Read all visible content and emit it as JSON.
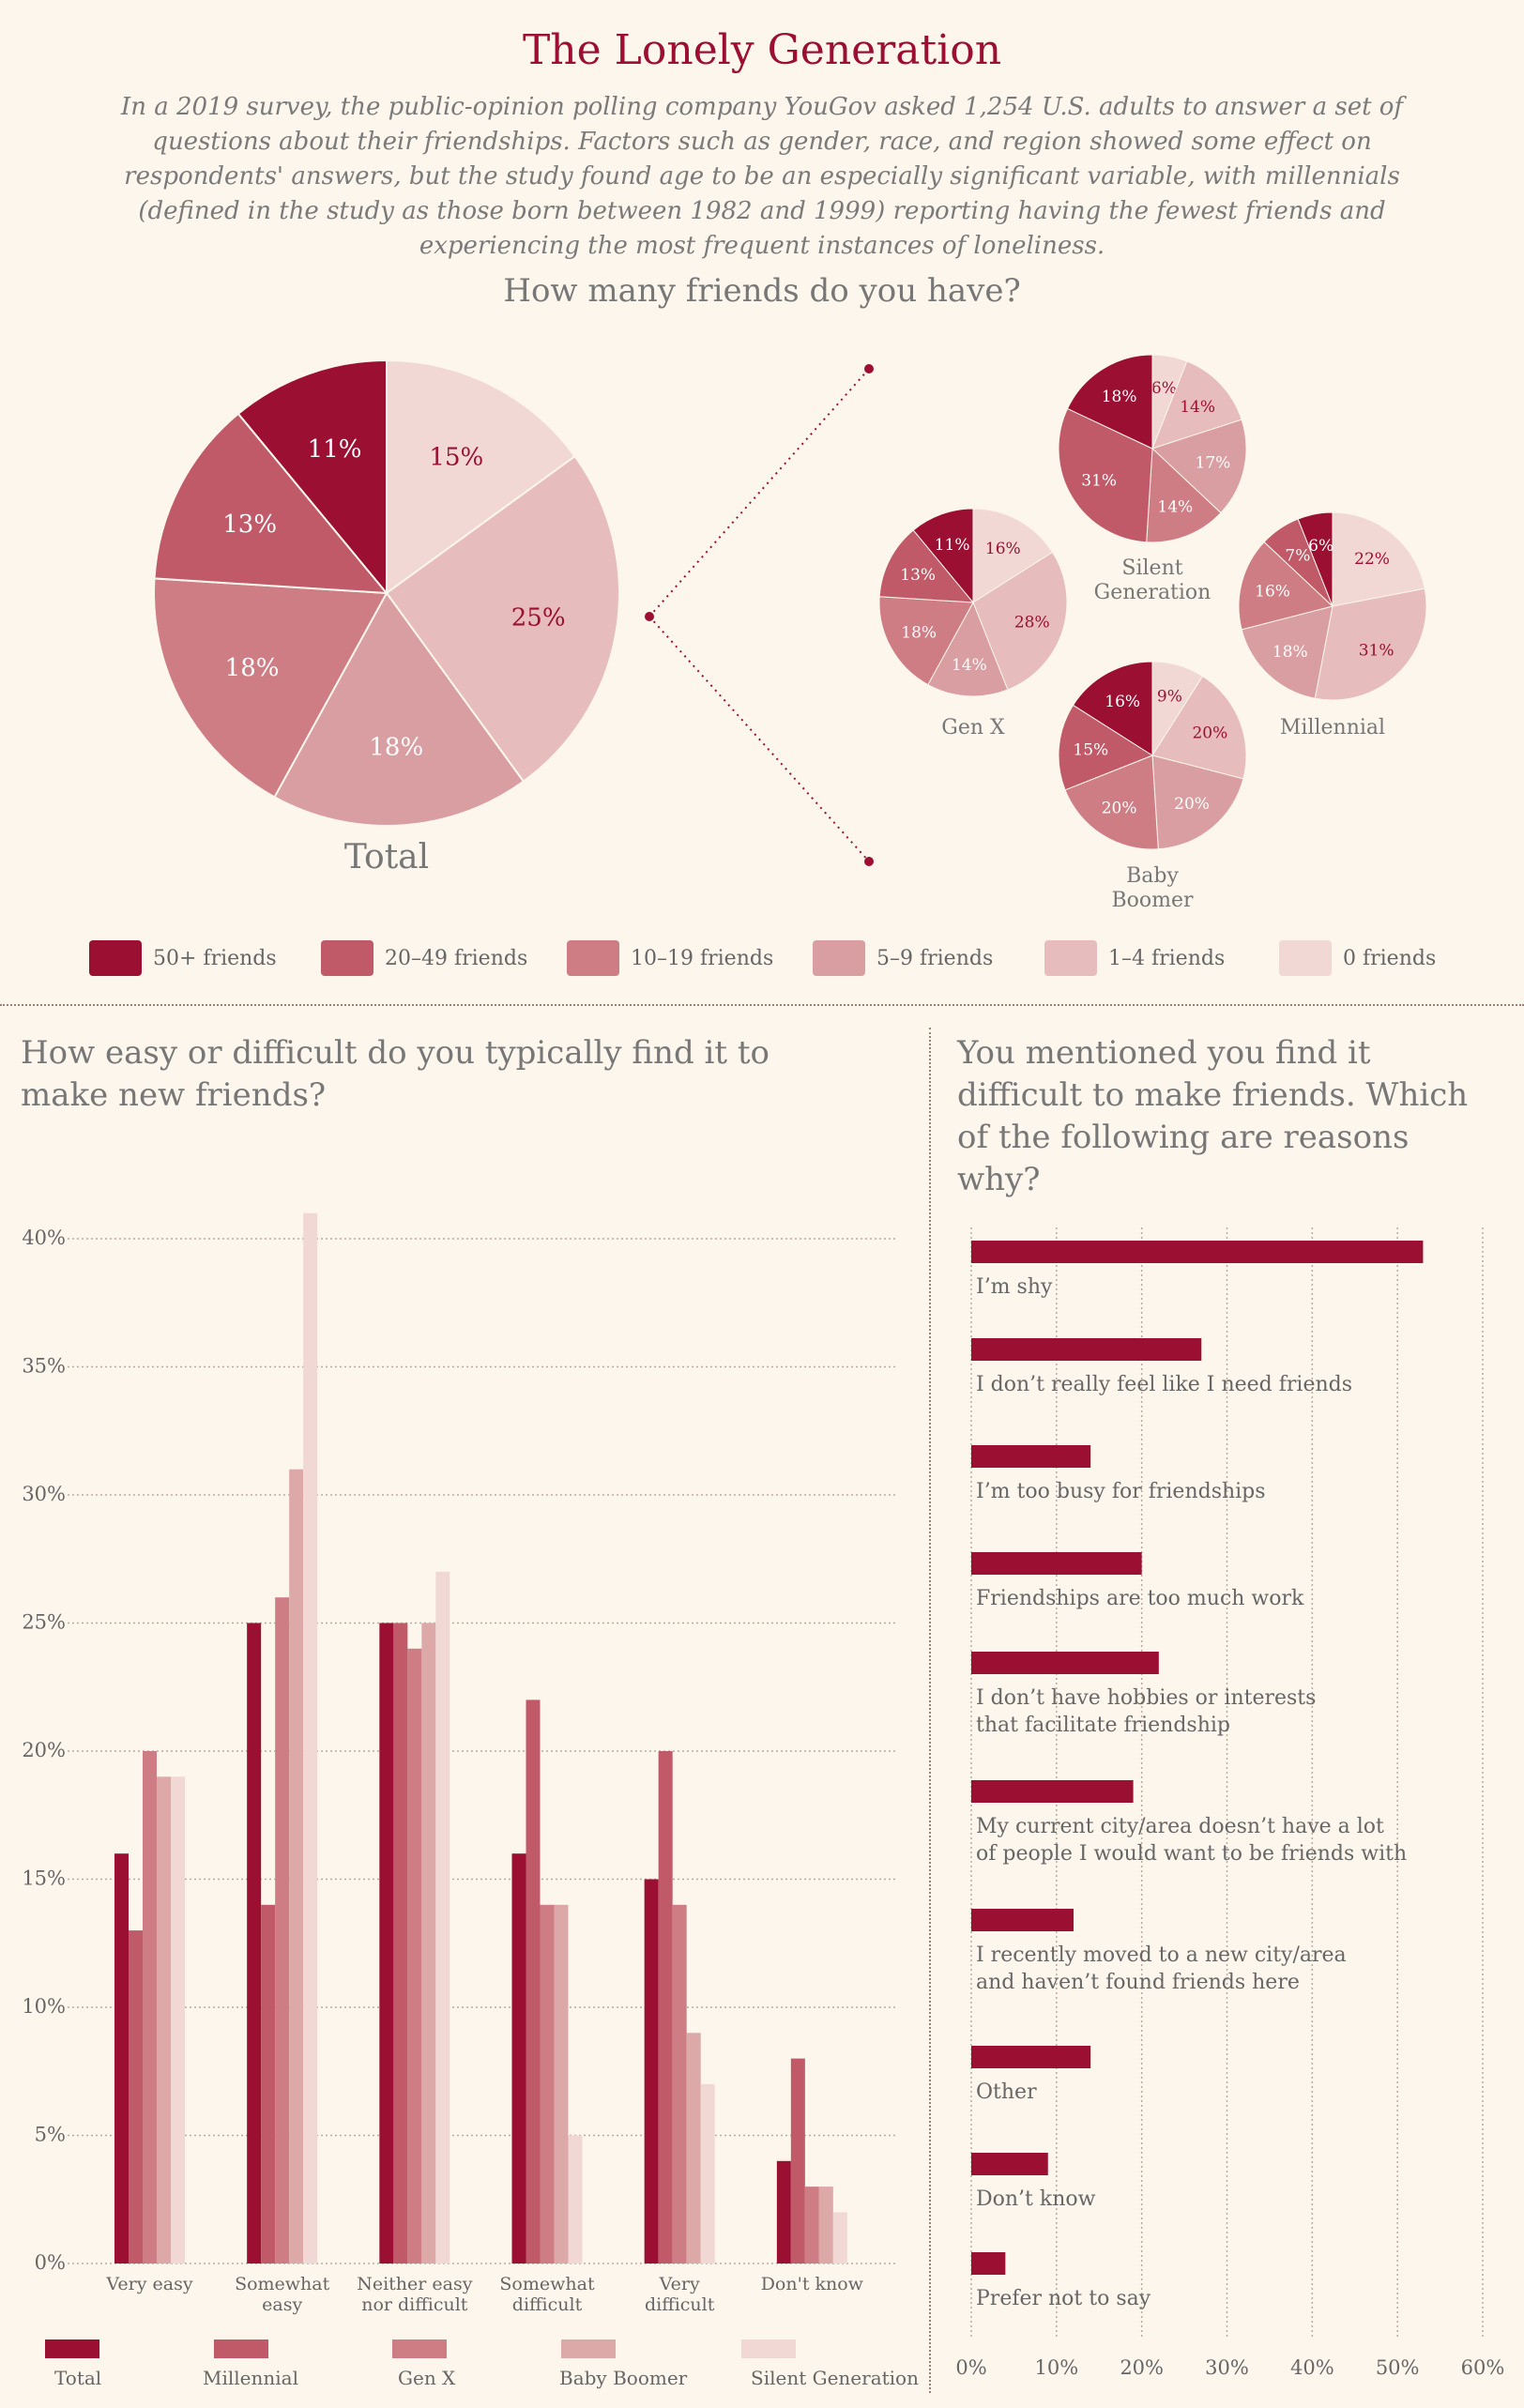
{
  "title": "The Lonely Generation",
  "intro": "In a 2019 survey, the public-opinion polling company YouGov asked 1,254 U.S. adults to answer a set of questions about their friendships. Factors such as gender, race, and region showed some effect on respondents' answers, but the study found age to be an especially significant variable, with millennials (defined in the study as those born between 1982 and 1999) reporting having the fewest friends and experiencing the most frequent instances of loneliness.",
  "pie_section": {
    "heading": "How many friends do you have?",
    "legend": [
      "50+ friends",
      "20–49 friends",
      "10–19 friends",
      "5–9 friends",
      "1–4 friends",
      "0 friends"
    ]
  },
  "bar_section": {
    "heading": "How easy or difficult do you typically find it to make new friends?",
    "legend": [
      "Total",
      "Millennial",
      "Gen X",
      "Baby Boomer",
      "Silent Generation"
    ]
  },
  "reasons_section": {
    "heading": "You mentioned you find it difficult to make friends. Which of the following are reasons why?"
  },
  "colors": {
    "friend_bins": [
      "#9b0f33",
      "#c05a68",
      "#cf7d84",
      "#d99ea1",
      "#e6bcbc",
      "#f1d8d4"
    ],
    "generations": [
      "#9b0f33",
      "#c05a68",
      "#cf7d84",
      "#dca9a8",
      "#f1d8d4"
    ],
    "accent": "#9b0f33"
  },
  "chart_data": [
    {
      "type": "pie",
      "name": "Total",
      "categories": [
        "50+ friends",
        "20–49 friends",
        "10–19 friends",
        "5–9 friends",
        "1–4 friends",
        "0 friends"
      ],
      "values": [
        11,
        13,
        18,
        18,
        25,
        15
      ]
    },
    {
      "type": "pie",
      "name": "Silent Generation",
      "categories": [
        "50+ friends",
        "20–49 friends",
        "10–19 friends",
        "5–9 friends",
        "1–4 friends",
        "0 friends"
      ],
      "values": [
        18,
        31,
        14,
        17,
        14,
        6
      ]
    },
    {
      "type": "pie",
      "name": "Gen X",
      "categories": [
        "50+ friends",
        "20–49 friends",
        "10–19 friends",
        "5–9 friends",
        "1–4 friends",
        "0 friends"
      ],
      "values": [
        11,
        13,
        18,
        14,
        28,
        16
      ]
    },
    {
      "type": "pie",
      "name": "Millennial",
      "categories": [
        "50+ friends",
        "20–49 friends",
        "10–19 friends",
        "5–9 friends",
        "1–4 friends",
        "0 friends"
      ],
      "values": [
        6,
        7,
        16,
        18,
        31,
        22
      ]
    },
    {
      "type": "pie",
      "name": "Baby Boomer",
      "categories": [
        "50+ friends",
        "20–49 friends",
        "10–19 friends",
        "5–9 friends",
        "1–4 friends",
        "0 friends"
      ],
      "values": [
        16,
        15,
        20,
        20,
        20,
        9
      ]
    },
    {
      "type": "bar",
      "categories": [
        "Very easy",
        "Somewhat easy",
        "Neither easy nor difficult",
        "Somewhat difficult",
        "Very difficult",
        "Don't know"
      ],
      "series": [
        {
          "name": "Total",
          "values": [
            16,
            25,
            25,
            16,
            15,
            4
          ]
        },
        {
          "name": "Millennial",
          "values": [
            13,
            14,
            25,
            22,
            20,
            8
          ]
        },
        {
          "name": "Gen X",
          "values": [
            20,
            26,
            24,
            14,
            14,
            3
          ]
        },
        {
          "name": "Baby Boomer",
          "values": [
            19,
            31,
            25,
            14,
            9,
            3
          ]
        },
        {
          "name": "Silent Generation",
          "values": [
            19,
            41,
            27,
            5,
            7,
            2
          ]
        }
      ],
      "ylim": [
        0,
        40
      ],
      "yticks": [
        "0%",
        "5%",
        "10%",
        "15%",
        "20%",
        "25%",
        "30%",
        "35%",
        "40%"
      ],
      "grid": true
    },
    {
      "type": "bar",
      "orientation": "horizontal",
      "categories": [
        "I'm shy",
        "I don't really feel like I need friends",
        "I'm too busy for friendships",
        "Friendships are too much work",
        "I don't have hobbies or interests that facilitate friendship",
        "My current city/area doesn't have a lot of people I would want to be friends with",
        "I recently moved to a new city/area and haven't found friends here",
        "Other",
        "Don't know",
        "Prefer not to say"
      ],
      "values": [
        53,
        27,
        14,
        20,
        22,
        19,
        12,
        14,
        9,
        4
      ],
      "xlim": [
        0,
        60
      ],
      "xticks": [
        "0%",
        "10%",
        "20%",
        "30%",
        "40%",
        "50%",
        "60%"
      ],
      "grid": true
    }
  ]
}
